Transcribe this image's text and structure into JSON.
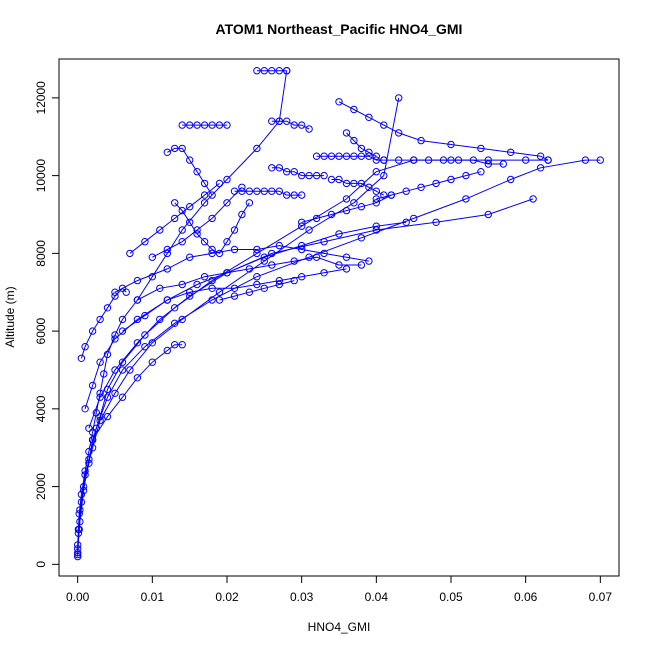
{
  "chart_data": {
    "type": "scatter",
    "title": "ATOM1 Northeast_Pacific HNO4_GMI",
    "xlabel": "HNO4_GMI",
    "ylabel": "Altitude (m)",
    "xlim": [
      -0.0025,
      0.0725
    ],
    "ylim": [
      -300,
      13000
    ],
    "x_ticks": [
      "0.00",
      "0.01",
      "0.02",
      "0.03",
      "0.04",
      "0.05",
      "0.06",
      "0.07"
    ],
    "x_tick_values": [
      0,
      0.01,
      0.02,
      0.03,
      0.04,
      0.05,
      0.06,
      0.07
    ],
    "y_ticks": [
      "0",
      "2000",
      "4000",
      "6000",
      "8000",
      "10000",
      "12000"
    ],
    "y_tick_values": [
      0,
      2000,
      4000,
      6000,
      8000,
      10000,
      12000
    ],
    "series_color": "#0000FF",
    "marker": "open-circle",
    "series": [
      {
        "x": [
          0.0,
          0.0,
          0.0001,
          0.0002,
          0.0005,
          0.001,
          0.0015,
          0.002,
          0.0025,
          0.003,
          0.0035,
          0.004,
          0.005,
          0.006,
          0.008,
          0.01,
          0.012,
          0.014,
          0.017,
          0.02,
          0.024,
          0.027,
          0.028
        ],
        "y": [
          200,
          500,
          900,
          1300,
          1800,
          2400,
          2900,
          3400,
          3900,
          4400,
          4900,
          5400,
          5900,
          6300,
          6800,
          7400,
          8000,
          8600,
          9300,
          9900,
          10700,
          11400,
          12700
        ]
      },
      {
        "x": [
          0.0,
          0.0001,
          0.0003,
          0.0008,
          0.0015,
          0.002,
          0.003,
          0.004,
          0.006,
          0.009,
          0.013,
          0.018,
          0.024,
          0.03,
          0.036,
          0.04,
          0.045,
          0.05,
          0.055,
          0.06,
          0.063
        ],
        "y": [
          300,
          800,
          1400,
          2000,
          2600,
          3200,
          3800,
          4500,
          5200,
          5900,
          6600,
          7300,
          8000,
          8700,
          9400,
          10100,
          10400,
          10400,
          10400,
          10400,
          10400
        ]
      },
      {
        "x": [
          0.0,
          0.0002,
          0.0005,
          0.001,
          0.002,
          0.003,
          0.005,
          0.007,
          0.01,
          0.014,
          0.019,
          0.025,
          0.031,
          0.037,
          0.041,
          0.043
        ],
        "y": [
          250,
          900,
          1600,
          2300,
          3000,
          3700,
          4400,
          5000,
          5700,
          6300,
          7000,
          7800,
          8600,
          9300,
          10000,
          12000
        ]
      },
      {
        "x": [
          0.0,
          0.0003,
          0.0008,
          0.0015,
          0.0025,
          0.004,
          0.006,
          0.009,
          0.013,
          0.018,
          0.024,
          0.031,
          0.038,
          0.045,
          0.052,
          0.058,
          0.062,
          0.068,
          0.07
        ],
        "y": [
          400,
          1100,
          1900,
          2700,
          3500,
          4300,
          5000,
          5600,
          6200,
          6800,
          7400,
          7900,
          8400,
          8900,
          9400,
          9900,
          10200,
          10400,
          10400
        ]
      },
      {
        "x": [
          0.001,
          0.002,
          0.003,
          0.005,
          0.008,
          0.012,
          0.016,
          0.02,
          0.025,
          0.03,
          0.035,
          0.04,
          0.044
        ],
        "y": [
          4000,
          4600,
          5200,
          5800,
          6300,
          6800,
          7200,
          7500,
          7900,
          8200,
          8500,
          8700,
          8800
        ]
      },
      {
        "x": [
          0.0015,
          0.003,
          0.005,
          0.008,
          0.011,
          0.015,
          0.02,
          0.026,
          0.033,
          0.04,
          0.048,
          0.055,
          0.061
        ],
        "y": [
          3500,
          4300,
          5000,
          5700,
          6300,
          6900,
          7500,
          8000,
          8300,
          8600,
          8800,
          9000,
          9400
        ]
      },
      {
        "x": [
          0.002,
          0.004,
          0.006,
          0.008,
          0.01,
          0.012,
          0.013,
          0.014
        ],
        "y": [
          3200,
          3800,
          4300,
          4800,
          5200,
          5500,
          5650,
          5650
        ]
      },
      {
        "x": [
          0.0005,
          0.001,
          0.002,
          0.003,
          0.004,
          0.005,
          0.006,
          0.0065
        ],
        "y": [
          5300,
          5600,
          6000,
          6300,
          6600,
          6900,
          7100,
          7000
        ]
      },
      {
        "x": [
          0.005,
          0.008,
          0.012,
          0.015,
          0.018,
          0.021,
          0.024,
          0.027,
          0.03,
          0.033,
          0.036,
          0.039
        ],
        "y": [
          7000,
          7300,
          7600,
          7900,
          8000,
          8100,
          8100,
          8200,
          8100,
          8000,
          7900,
          7800
        ]
      },
      {
        "x": [
          0.008,
          0.011,
          0.014,
          0.017,
          0.02,
          0.023,
          0.026,
          0.029,
          0.032,
          0.035,
          0.038
        ],
        "y": [
          6800,
          7100,
          7200,
          7400,
          7500,
          7600,
          7700,
          7800,
          7900,
          7700,
          7700
        ]
      },
      {
        "x": [
          0.006,
          0.009,
          0.012,
          0.015,
          0.018,
          0.021,
          0.024,
          0.027,
          0.03,
          0.033,
          0.036
        ],
        "y": [
          6000,
          6400,
          6800,
          7000,
          7100,
          7100,
          7200,
          7300,
          7400,
          7500,
          7600
        ]
      },
      {
        "x": [
          0.014,
          0.015,
          0.016,
          0.017,
          0.018,
          0.019,
          0.02
        ],
        "y": [
          11300,
          11300,
          11300,
          11300,
          11300,
          11300,
          11300
        ]
      },
      {
        "x": [
          0.012,
          0.013,
          0.014,
          0.015,
          0.016,
          0.017,
          0.018
        ],
        "y": [
          10600,
          10700,
          10700,
          10400,
          10100,
          9800,
          9500
        ]
      },
      {
        "x": [
          0.013,
          0.014,
          0.015,
          0.016,
          0.017,
          0.018,
          0.019,
          0.02,
          0.021,
          0.022,
          0.023
        ],
        "y": [
          9300,
          9100,
          8800,
          8500,
          8300,
          8100,
          8000,
          8300,
          8600,
          9000,
          9300
        ]
      },
      {
        "x": [
          0.021,
          0.022,
          0.023,
          0.024,
          0.025,
          0.026,
          0.027,
          0.028,
          0.029,
          0.03
        ],
        "y": [
          9600,
          9600,
          9600,
          9600,
          9600,
          9600,
          9600,
          9500,
          9500,
          9500
        ]
      },
      {
        "x": [
          0.026,
          0.027,
          0.028,
          0.029,
          0.03,
          0.031,
          0.032,
          0.033
        ],
        "y": [
          10200,
          10200,
          10100,
          10100,
          10000,
          10000,
          10000,
          10000
        ]
      },
      {
        "x": [
          0.032,
          0.033,
          0.034,
          0.035,
          0.036,
          0.037,
          0.038,
          0.039,
          0.04,
          0.041
        ],
        "y": [
          10500,
          10500,
          10500,
          10500,
          10500,
          10500,
          10500,
          10500,
          10400,
          10400
        ]
      },
      {
        "x": [
          0.034,
          0.035,
          0.036,
          0.037,
          0.038,
          0.039,
          0.04,
          0.041
        ],
        "y": [
          9900,
          9900,
          9800,
          9800,
          9800,
          9700,
          9600,
          9500
        ]
      },
      {
        "x": [
          0.036,
          0.037,
          0.038,
          0.039,
          0.04
        ],
        "y": [
          11100,
          10900,
          10700,
          10600,
          10500
        ]
      },
      {
        "x": [
          0.024,
          0.025,
          0.026,
          0.027,
          0.028
        ],
        "y": [
          12700,
          12700,
          12700,
          12700,
          12700
        ]
      },
      {
        "x": [
          0.026,
          0.027,
          0.028,
          0.029,
          0.03,
          0.031
        ],
        "y": [
          11400,
          11400,
          11400,
          11300,
          11300,
          11200
        ]
      },
      {
        "x": [
          0.041,
          0.043,
          0.045,
          0.047,
          0.049,
          0.051,
          0.053,
          0.055,
          0.057
        ],
        "y": [
          10400,
          10400,
          10400,
          10400,
          10400,
          10400,
          10400,
          10300,
          10300
        ]
      },
      {
        "x": [
          0.035,
          0.037,
          0.039,
          0.041,
          0.043,
          0.046,
          0.05,
          0.054,
          0.058,
          0.062,
          0.063
        ],
        "y": [
          11900,
          11700,
          11500,
          11300,
          11100,
          10900,
          10800,
          10700,
          10600,
          10500,
          10400
        ]
      },
      {
        "x": [
          0.04,
          0.042,
          0.044,
          0.046,
          0.048,
          0.05,
          0.052,
          0.054
        ],
        "y": [
          9400,
          9500,
          9600,
          9700,
          9800,
          9900,
          10000,
          10100
        ]
      },
      {
        "x": [
          0.01,
          0.012,
          0.014,
          0.016,
          0.018,
          0.02,
          0.022
        ],
        "y": [
          7900,
          8100,
          8300,
          8600,
          8900,
          9300,
          9700
        ]
      },
      {
        "x": [
          0.007,
          0.009,
          0.011,
          0.013,
          0.015,
          0.017,
          0.019
        ],
        "y": [
          8000,
          8300,
          8600,
          8900,
          9200,
          9500,
          9800
        ]
      },
      {
        "x": [
          0.019,
          0.021,
          0.023,
          0.025,
          0.027,
          0.029
        ],
        "y": [
          6800,
          6900,
          7000,
          7100,
          7200,
          7300
        ]
      },
      {
        "x": [
          0.03,
          0.032,
          0.034,
          0.036,
          0.038,
          0.04,
          0.042
        ],
        "y": [
          8800,
          8900,
          9000,
          9100,
          9200,
          9300,
          9500
        ]
      }
    ]
  }
}
